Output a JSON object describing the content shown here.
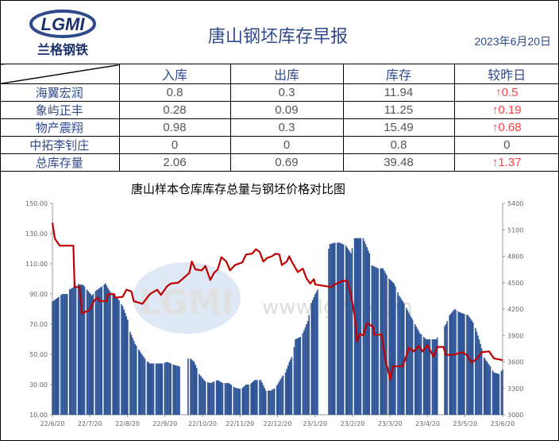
{
  "header": {
    "logo_text": "LGMI",
    "logo_subtitle": "兰格钢铁",
    "title": "唐山钢坯库存早报",
    "date": "2023年6月20日"
  },
  "table": {
    "columns": [
      "入库",
      "出库",
      "库存",
      "较昨日"
    ],
    "rows": [
      {
        "name": "海翼宏润",
        "in": "0.8",
        "out": "0.3",
        "stock": "11.94",
        "change": "↑0.5",
        "dir": "up"
      },
      {
        "name": "象屿正丰",
        "in": "0.28",
        "out": "0.09",
        "stock": "11.25",
        "change": "↑0.19",
        "dir": "up"
      },
      {
        "name": "物产震翔",
        "in": "0.98",
        "out": "0.3",
        "stock": "15.49",
        "change": "↑0.68",
        "dir": "up"
      },
      {
        "name": "中拓李钊庄",
        "in": "0",
        "out": "0",
        "stock": "0.8",
        "change": "0",
        "dir": "flat"
      },
      {
        "name": "总库存量",
        "in": "2.06",
        "out": "0.69",
        "stock": "39.48",
        "change": "↑1.37",
        "dir": "up"
      }
    ]
  },
  "chart_data": {
    "type": "bar+line",
    "title": "唐山样本仓库库存总量与钢坯价格对比图",
    "watermark": "LGMI www.lgmi.com",
    "x_unit": "days since 22/6/20",
    "x_ticks": [
      "22/6/20",
      "22/7/20",
      "22/8/20",
      "22/9/20",
      "22/10/20",
      "22/11/20",
      "22/12/20",
      "23/1/20",
      "23/2/20",
      "23/3/20",
      "23/4/20",
      "23/5/20",
      "23/6/20"
    ],
    "left_axis": {
      "ticks": [
        "150.00",
        "130.00",
        "110.00",
        "90.00",
        "70.00",
        "50.00",
        "30.00",
        "10.00"
      ],
      "range": [
        10,
        150
      ]
    },
    "right_axis": {
      "ticks": [
        "5400",
        "5100",
        "4800",
        "4500",
        "4200",
        "3900",
        "3600",
        "3300",
        "3000"
      ],
      "range": [
        3000,
        5400
      ]
    },
    "colors": {
      "bar": "#2f5597",
      "line": "#c00000"
    },
    "bar_gaps": [
      [
        104,
        110
      ],
      [
        216,
        224
      ],
      [
        312,
        318
      ]
    ],
    "series": [
      {
        "name": "库存总量",
        "kind": "bar",
        "points": [
          [
            0,
            85
          ],
          [
            5,
            88
          ],
          [
            8,
            90
          ],
          [
            12,
            90
          ],
          [
            14,
            93
          ],
          [
            18,
            95
          ],
          [
            21,
            96.5
          ],
          [
            25,
            96
          ],
          [
            28,
            93
          ],
          [
            32,
            89
          ],
          [
            35,
            92
          ],
          [
            40,
            95
          ],
          [
            43,
            97
          ],
          [
            45,
            94
          ],
          [
            48,
            90
          ],
          [
            53,
            87
          ],
          [
            57,
            82
          ],
          [
            61,
            73
          ],
          [
            63,
            65
          ],
          [
            67,
            57
          ],
          [
            71,
            52
          ],
          [
            76,
            46
          ],
          [
            79,
            44
          ],
          [
            85,
            44
          ],
          [
            89,
            44
          ],
          [
            93,
            45
          ],
          [
            99,
            43
          ],
          [
            103,
            42
          ],
          [
            111,
            48
          ],
          [
            115,
            45
          ],
          [
            119,
            37
          ],
          [
            124,
            32
          ],
          [
            128,
            31
          ],
          [
            134,
            33
          ],
          [
            138,
            31
          ],
          [
            143,
            31
          ],
          [
            148,
            28
          ],
          [
            153,
            27
          ],
          [
            157,
            30
          ],
          [
            160,
            30
          ],
          [
            164,
            33
          ],
          [
            169,
            33
          ],
          [
            173,
            26
          ],
          [
            177,
            26
          ],
          [
            181,
            28
          ],
          [
            186,
            35
          ],
          [
            189,
            38
          ],
          [
            192,
            45
          ],
          [
            195,
            50
          ],
          [
            197,
            60
          ],
          [
            202,
            62
          ],
          [
            205,
            68
          ],
          [
            207,
            72
          ],
          [
            210,
            84
          ],
          [
            213,
            90
          ],
          [
            215,
            93
          ],
          [
            225,
            123
          ],
          [
            229,
            124
          ],
          [
            233,
            124
          ],
          [
            238,
            122
          ],
          [
            242,
            117
          ],
          [
            245,
            127
          ],
          [
            249,
            127
          ],
          [
            252,
            127
          ],
          [
            257,
            117
          ],
          [
            259,
            109
          ],
          [
            264,
            107
          ],
          [
            268,
            107
          ],
          [
            272,
            101
          ],
          [
            277,
            97
          ],
          [
            281,
            89
          ],
          [
            285,
            84
          ],
          [
            290,
            76
          ],
          [
            294,
            70
          ],
          [
            298,
            64
          ],
          [
            303,
            60
          ],
          [
            307,
            60
          ],
          [
            311,
            60
          ],
          [
            319,
            70
          ],
          [
            322,
            76
          ],
          [
            326,
            80
          ],
          [
            330,
            78
          ],
          [
            333,
            77
          ],
          [
            337,
            76
          ],
          [
            342,
            70
          ],
          [
            346,
            60
          ],
          [
            350,
            48
          ],
          [
            355,
            42
          ],
          [
            358,
            38
          ],
          [
            362,
            37
          ],
          [
            365,
            40
          ]
        ]
      },
      {
        "name": "钢坯价格",
        "kind": "line",
        "points": [
          [
            0,
            5180
          ],
          [
            2,
            5000
          ],
          [
            6,
            4920
          ],
          [
            17,
            4920
          ],
          [
            18,
            4450
          ],
          [
            22,
            4450
          ],
          [
            24,
            4150
          ],
          [
            30,
            4190
          ],
          [
            34,
            4300
          ],
          [
            37,
            4330
          ],
          [
            38,
            4290
          ],
          [
            44,
            4290
          ],
          [
            45,
            4370
          ],
          [
            50,
            4370
          ],
          [
            51,
            4330
          ],
          [
            57,
            4340
          ],
          [
            60,
            4420
          ],
          [
            64,
            4400
          ],
          [
            66,
            4290
          ],
          [
            73,
            4260
          ],
          [
            79,
            4370
          ],
          [
            85,
            4420
          ],
          [
            88,
            4360
          ],
          [
            93,
            4460
          ],
          [
            96,
            4490
          ],
          [
            102,
            4500
          ],
          [
            111,
            4610
          ],
          [
            113,
            4740
          ],
          [
            116,
            4650
          ],
          [
            121,
            4640
          ],
          [
            124,
            4690
          ],
          [
            128,
            4530
          ],
          [
            131,
            4610
          ],
          [
            134,
            4650
          ],
          [
            137,
            4790
          ],
          [
            141,
            4740
          ],
          [
            144,
            4640
          ],
          [
            148,
            4700
          ],
          [
            154,
            4730
          ],
          [
            157,
            4820
          ],
          [
            162,
            4830
          ],
          [
            165,
            4880
          ],
          [
            168,
            4850
          ],
          [
            171,
            4740
          ],
          [
            174,
            4780
          ],
          [
            178,
            4800
          ],
          [
            181,
            4830
          ],
          [
            184,
            4820
          ],
          [
            186,
            4700
          ],
          [
            190,
            4740
          ],
          [
            192,
            4800
          ],
          [
            194,
            4740
          ],
          [
            199,
            4620
          ],
          [
            203,
            4660
          ],
          [
            206,
            4550
          ],
          [
            209,
            4490
          ],
          [
            212,
            4540
          ],
          [
            213,
            4480
          ],
          [
            226,
            4450
          ],
          [
            229,
            4480
          ],
          [
            235,
            4520
          ],
          [
            239,
            4520
          ],
          [
            242,
            4370
          ],
          [
            245,
            4130
          ],
          [
            247,
            3830
          ],
          [
            249,
            3920
          ],
          [
            252,
            3900
          ],
          [
            255,
            4040
          ],
          [
            260,
            4000
          ],
          [
            261,
            3910
          ],
          [
            267,
            3910
          ],
          [
            270,
            3620
          ],
          [
            274,
            3400
          ],
          [
            276,
            3550
          ],
          [
            284,
            3550
          ],
          [
            286,
            3630
          ],
          [
            289,
            3760
          ],
          [
            293,
            3720
          ],
          [
            297,
            3780
          ],
          [
            300,
            3720
          ],
          [
            304,
            3790
          ],
          [
            309,
            3660
          ],
          [
            312,
            3770
          ],
          [
            317,
            3770
          ],
          [
            319,
            3680
          ],
          [
            325,
            3680
          ],
          [
            332,
            3710
          ],
          [
            336,
            3680
          ],
          [
            340,
            3590
          ],
          [
            345,
            3650
          ],
          [
            348,
            3710
          ],
          [
            354,
            3720
          ],
          [
            358,
            3640
          ],
          [
            362,
            3630
          ],
          [
            365,
            3620
          ]
        ]
      }
    ]
  }
}
